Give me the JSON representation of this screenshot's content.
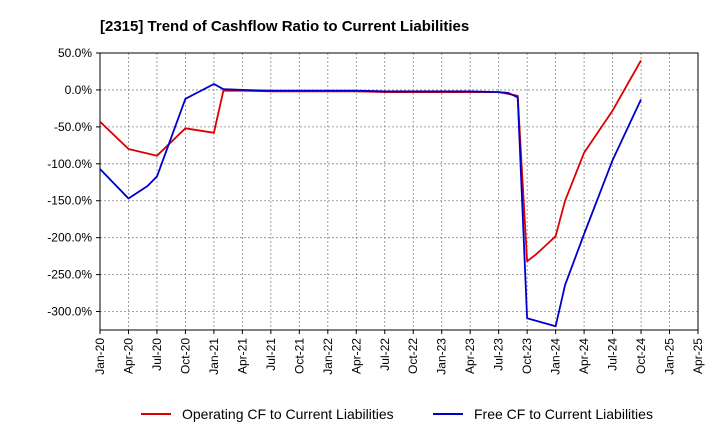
{
  "chart_data": {
    "type": "line",
    "title": "[2315]  Trend of Cashflow Ratio to Current Liabilities",
    "xlabel": "",
    "ylabel": "",
    "ylim": [
      -325,
      50
    ],
    "y_ticks": [
      50,
      0,
      -50,
      -100,
      -150,
      -200,
      -250,
      -300
    ],
    "y_tick_labels": [
      "50.0%",
      "0.0%",
      "-50.0%",
      "-100.0%",
      "-150.0%",
      "-200.0%",
      "-250.0%",
      "-300.0%"
    ],
    "x_range_months": [
      0,
      63
    ],
    "x_ticks_months": [
      0,
      3,
      6,
      9,
      12,
      15,
      18,
      21,
      24,
      27,
      30,
      33,
      36,
      39,
      42,
      45,
      48,
      51,
      54,
      57,
      60,
      63
    ],
    "x_tick_labels": [
      "Jan-20",
      "Apr-20",
      "Jul-20",
      "Oct-20",
      "Jan-21",
      "Apr-21",
      "Jul-21",
      "Oct-21",
      "Jan-22",
      "Apr-22",
      "Jul-22",
      "Oct-22",
      "Jan-23",
      "Apr-23",
      "Jul-23",
      "Oct-23",
      "Jan-24",
      "Apr-24",
      "Jul-24",
      "Oct-24",
      "Jan-25",
      "Apr-25"
    ],
    "grid": true,
    "legend_position": "bottom",
    "series": [
      {
        "name": "Operating CF to Current Liabilities",
        "color": "#dd0000",
        "x": [
          0,
          3,
          6,
          9,
          12,
          13,
          15,
          18,
          21,
          24,
          27,
          30,
          33,
          36,
          39,
          42,
          44,
          45,
          46,
          47,
          48,
          49,
          51,
          54,
          57
        ],
        "values": [
          -43,
          -80,
          -89,
          -52,
          -58,
          -1,
          -1,
          -2,
          -2,
          -2,
          -2,
          -3,
          -3,
          -3,
          -3,
          -3,
          -8,
          -232,
          -222,
          -210,
          -198,
          -150,
          -85,
          -28,
          40
        ]
      },
      {
        "name": "Free CF to Current Liabilities",
        "color": "#0000cc",
        "x": [
          0,
          3,
          5,
          6,
          9,
          12,
          13,
          15,
          18,
          21,
          24,
          27,
          30,
          33,
          36,
          39,
          42,
          43,
          44,
          45,
          48,
          49,
          51,
          54,
          57
        ],
        "values": [
          -107,
          -147,
          -130,
          -117,
          -12,
          8,
          1,
          0,
          -1,
          -1,
          -1,
          -1,
          -2,
          -2,
          -2,
          -2,
          -3,
          -4,
          -10,
          -309,
          -320,
          -264,
          -195,
          -95,
          -13
        ]
      }
    ]
  }
}
